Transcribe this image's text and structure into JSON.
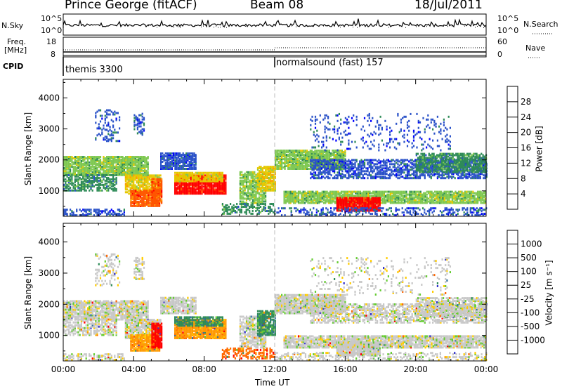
{
  "header": {
    "station": "Prince George (fitACF)",
    "beam": "Beam 08",
    "date": "18/Jul/2011"
  },
  "colors": {
    "power_scale": [
      "#0000ff",
      "#2a52c8",
      "#2e8b57",
      "#7ec850",
      "#e5c800",
      "#ff9900",
      "#ff5500",
      "#ff0000"
    ],
    "velocity_scale": [
      "#3333cc",
      "#2f6e9e",
      "#2e8b57",
      "#66cc33",
      "#c8c8c8",
      "#ffcc00",
      "#ff9900",
      "#ff6600",
      "#ff0000"
    ]
  },
  "chart_data": [
    {
      "type": "line",
      "name": "summary-nsky",
      "left_label": "N.Sky",
      "right_label": "N.Search",
      "left_ticks": [
        "10^5",
        "10^0"
      ],
      "right_ticks": [
        "10^5",
        "10^0"
      ]
    },
    {
      "type": "line",
      "name": "summary-freq",
      "left_label_top": "Freq.",
      "left_label_bottom": "[MHz]",
      "left_ticks": [
        "18",
        "8"
      ],
      "right_label": "Nave",
      "right_ticks": [
        "60",
        "0"
      ],
      "cpid_label": "CPID",
      "modes": [
        {
          "start": "00:00",
          "label": "themis 3300"
        },
        {
          "start": "12:00",
          "label": "normalsound (fast) 157"
        }
      ]
    },
    {
      "type": "heatmap",
      "name": "power",
      "ylabel": "Slant Range [km]",
      "xlabel": "",
      "x_ticks": [
        "00:00",
        "04:00",
        "08:00",
        "12:00",
        "16:00",
        "20:00",
        "00:00"
      ],
      "y_ticks": [
        1000,
        2000,
        3000,
        4000
      ],
      "ylim": [
        180,
        4600
      ],
      "xlim_hours": [
        0,
        24
      ],
      "colorbar": {
        "label": "Power [dB]",
        "ticks": [
          4,
          8,
          12,
          16,
          20,
          24,
          28
        ],
        "range": [
          0,
          32
        ]
      }
    },
    {
      "type": "heatmap",
      "name": "velocity",
      "ylabel": "Slant Range [km]",
      "xlabel": "Time UT",
      "x_ticks": [
        "00:00",
        "04:00",
        "08:00",
        "12:00",
        "16:00",
        "20:00",
        "00:00"
      ],
      "y_ticks": [
        1000,
        2000,
        3000,
        4000
      ],
      "ylim": [
        180,
        4600
      ],
      "xlim_hours": [
        0,
        24
      ],
      "colorbar": {
        "label": "Velocity [m s⁻¹]",
        "ticks": [
          "1000",
          "500",
          "100",
          "25",
          "-25",
          "-100",
          "-500",
          "-1000"
        ]
      }
    }
  ]
}
